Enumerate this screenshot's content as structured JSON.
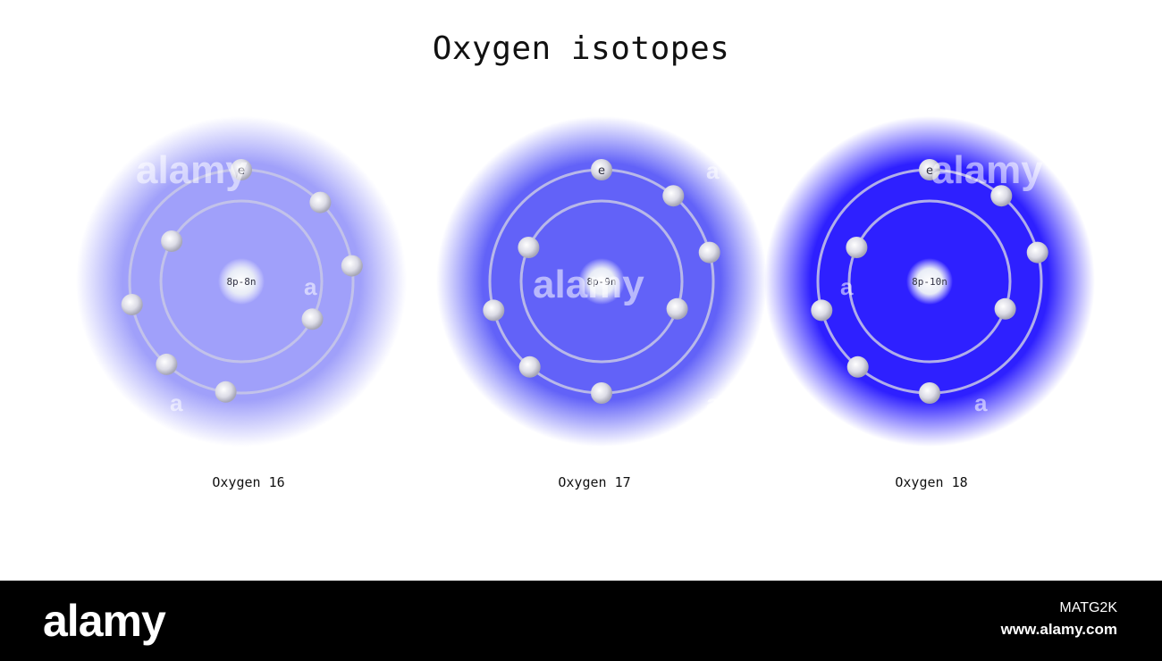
{
  "title": "Oxygen isotopes",
  "isotopes": [
    {
      "caption": "Oxygen 16",
      "nucleus_label": "8p-8n",
      "electron_label": "e",
      "electron_count": 8,
      "cloud_color": "#a0a0fa",
      "glow_color": "#b4b4ff"
    },
    {
      "caption": "Oxygen 17",
      "nucleus_label": "8p-9n",
      "electron_label": "e",
      "electron_count": 8,
      "cloud_color": "#6262f8",
      "glow_color": "#6f6ff8"
    },
    {
      "caption": "Oxygen 18",
      "nucleus_label": "8p-10n",
      "electron_label": "e",
      "electron_count": 8,
      "cloud_color": "#2e20ff",
      "glow_color": "#3a2cff"
    }
  ],
  "watermark": {
    "text": "alamy",
    "letter": "a"
  },
  "footer": {
    "logo": "alamy",
    "image_id": "MATG2K",
    "url": "www.alamy.com"
  },
  "colors": {
    "orbit": "#c8c8e6",
    "electron": "#e4e4ee",
    "footer_bg": "#000000"
  }
}
